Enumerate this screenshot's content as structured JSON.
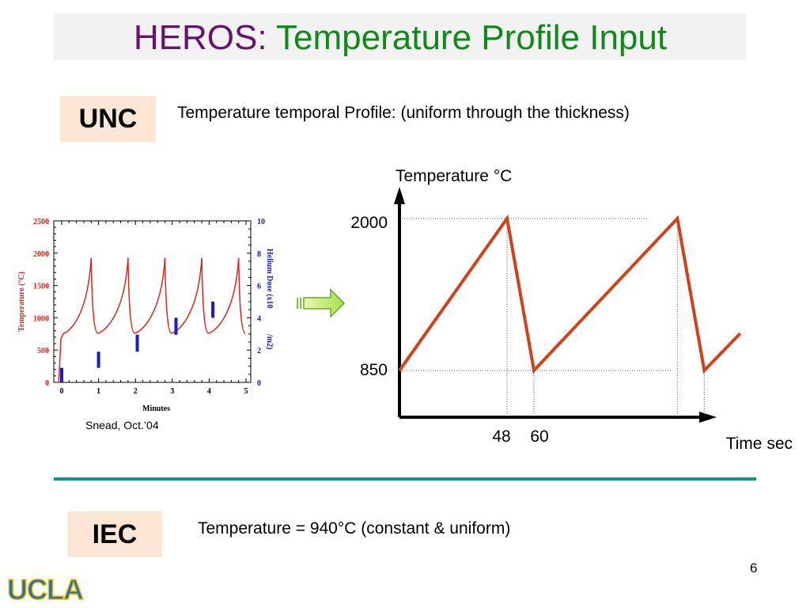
{
  "title": {
    "part1": "HEROS:",
    "part2": "Temperature Profile Input"
  },
  "unc": {
    "badge": "UNC",
    "description": "Temperature temporal Profile: (uniform through the thickness)"
  },
  "iec": {
    "badge": "IEC",
    "description": "Temperature = 940°C (constant & uniform)"
  },
  "credit": "Snead, Oct.’04",
  "page_number": "6",
  "logo": "UCLA",
  "colors": {
    "title_heros": "#66136e",
    "title_main": "#11881a",
    "badge_bg": "#fde6d3",
    "profile_line": "#d0421c",
    "divider": "#13968a",
    "small_temp": "#d42a1e",
    "small_dose": "#1a1ad0"
  },
  "arrow_icon": "right-arrow-icon",
  "chart_data": [
    {
      "type": "line",
      "title": "",
      "xlabel": "Time sec",
      "ylabel": "Temperature °C",
      "x_ticks": [
        "48",
        "60"
      ],
      "y_ticks": [
        "850",
        "2000"
      ],
      "grid": "dotted reference lines at ticks",
      "series": [
        {
          "x": [
            0,
            48,
            60,
            124,
            136,
            152
          ],
          "y": [
            850,
            2000,
            850,
            2000,
            850,
            1130
          ]
        }
      ]
    },
    {
      "type": "line",
      "xlabel": "Minutes",
      "ylabel": "Temperature (°C)",
      "y2label_main": "Helium Dose (x10",
      "y2label_exp": "18",
      "y2label_end": "/m2)",
      "xlim": [
        0,
        5
      ],
      "ylim": [
        0,
        2500
      ],
      "y2lim": [
        0,
        10
      ],
      "x_ticks": [
        "0",
        "1",
        "2",
        "3",
        "4",
        "5"
      ],
      "y_ticks": [
        "0",
        "500",
        "1000",
        "1500",
        "2000",
        "2500"
      ],
      "y2_ticks": [
        "0",
        "2",
        "4",
        "6",
        "8",
        "10"
      ],
      "series": [
        {
          "peaks_at_minutes": [
            0.8,
            1.8,
            2.8,
            3.8,
            4.8
          ],
          "peak_temperature": 1930,
          "trough_temperature": 760
        },
        {
          "dose_bars_minutes": [
            0.0,
            1.0,
            2.05,
            3.1,
            4.1
          ],
          "dose_bar_low": [
            0.0,
            0.9,
            1.9,
            2.95,
            4.0
          ],
          "dose_bar_high": [
            0.9,
            1.9,
            2.95,
            4.0,
            5.0
          ]
        }
      ]
    }
  ]
}
